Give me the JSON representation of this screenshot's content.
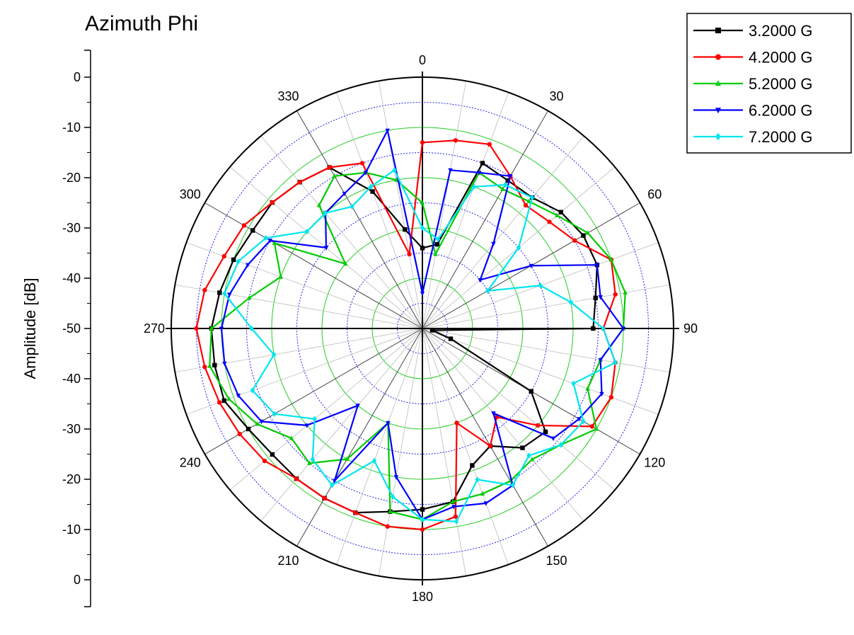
{
  "chart_data": {
    "type": "polar-line",
    "title": "Azimuth Phi",
    "ylabel": "Amplitude [dB]",
    "radial_range_db": [
      -50,
      0
    ],
    "radial_tick_labels": [
      "0",
      "-10",
      "-20",
      "-30",
      "-40",
      "-50",
      "-40",
      "-30",
      "-20",
      "-10",
      "0"
    ],
    "angle_tick_labels": [
      {
        "deg": 0,
        "label": "0"
      },
      {
        "deg": 30,
        "label": "30"
      },
      {
        "deg": 60,
        "label": "60"
      },
      {
        "deg": 90,
        "label": "90"
      },
      {
        "deg": 120,
        "label": "120"
      },
      {
        "deg": 150,
        "label": "150"
      },
      {
        "deg": 180,
        "label": "180"
      },
      {
        "deg": 210,
        "label": "210"
      },
      {
        "deg": 240,
        "label": "240"
      },
      {
        "deg": 270,
        "label": "270"
      },
      {
        "deg": 300,
        "label": "300"
      },
      {
        "deg": 330,
        "label": "330"
      }
    ],
    "legend_position": "top-right",
    "series": [
      {
        "name": "3.2000 G",
        "color": "#000000",
        "marker": "square",
        "angles": [
          0,
          10,
          20,
          30,
          40,
          50,
          60,
          70,
          80,
          90,
          100,
          110,
          120,
          130,
          140,
          150,
          160,
          170,
          180,
          190,
          200,
          210,
          220,
          230,
          240,
          250,
          260,
          270,
          280,
          290,
          300,
          310,
          320,
          330,
          340,
          350
        ],
        "values": [
          -34,
          -33,
          -15,
          -16,
          -16,
          -14,
          -13,
          -13,
          -15,
          -16,
          -48,
          -44,
          -25,
          -18,
          -19,
          -23,
          -21,
          -15,
          -14,
          -13,
          -11,
          -11,
          -11,
          -11,
          -10,
          -8,
          -8,
          -8,
          -9,
          -10,
          -11,
          -11,
          -12,
          -13,
          -21,
          -30
        ]
      },
      {
        "name": "4.2000 G",
        "color": "#ff0000",
        "marker": "circle",
        "angles": [
          0,
          10,
          20,
          30,
          40,
          50,
          60,
          70,
          80,
          90,
          100,
          110,
          120,
          130,
          140,
          150,
          160,
          170,
          180,
          190,
          200,
          210,
          220,
          230,
          240,
          250,
          260,
          270,
          280,
          290,
          300,
          310,
          320,
          330,
          340,
          350
        ],
        "values": [
          -13,
          -12,
          -11,
          -15,
          -18,
          -17,
          -15,
          -10,
          -11,
          -14,
          -11,
          -10,
          -11,
          -20,
          -27,
          -23,
          -30,
          -12,
          -10,
          -10,
          -11,
          -11,
          -11,
          -9,
          -8,
          -7,
          -6,
          -5,
          -6,
          -8,
          -9,
          -11,
          -12,
          -13,
          -15,
          -35
        ]
      },
      {
        "name": "5.2000 G",
        "color": "#00cc00",
        "marker": "triangle-up",
        "angles": [
          0,
          10,
          20,
          30,
          40,
          50,
          60,
          70,
          80,
          90,
          100,
          110,
          120,
          130,
          140,
          150,
          160,
          170,
          180,
          190,
          200,
          210,
          220,
          230,
          240,
          250,
          260,
          270,
          280,
          290,
          300,
          310,
          320,
          330,
          340,
          350
        ],
        "values": [
          -25,
          -35,
          -17,
          -18,
          -17,
          -15,
          -12,
          -10,
          -9,
          -10,
          -14,
          -15,
          -10,
          -14,
          -16,
          -15,
          -15,
          -15,
          -12,
          -13,
          -30,
          -20,
          -15,
          -16,
          -12,
          -9,
          -7,
          -8,
          -15,
          -20,
          -16,
          -30,
          -18,
          -15,
          -17,
          -20
        ]
      },
      {
        "name": "6.2000 G",
        "color": "#0000ff",
        "marker": "triangle-down",
        "angles": [
          0,
          10,
          20,
          30,
          40,
          50,
          60,
          70,
          80,
          90,
          100,
          110,
          120,
          130,
          140,
          150,
          160,
          170,
          180,
          190,
          200,
          210,
          220,
          230,
          240,
          250,
          260,
          270,
          280,
          290,
          300,
          310,
          320,
          330,
          340,
          350
        ],
        "values": [
          -43,
          -18,
          -17,
          -15,
          -28,
          -35,
          -25,
          -13,
          -14,
          -10,
          -14,
          -12,
          -14,
          -16,
          -28,
          -14,
          -13,
          -14,
          -12,
          -20,
          -30,
          -15,
          -30,
          -20,
          -13,
          -11,
          -10,
          -10,
          -11,
          -13,
          -15,
          -25,
          -20,
          -19,
          -17,
          -10
        ]
      },
      {
        "name": "7.2000 G",
        "color": "#00e5ee",
        "marker": "diamond",
        "angles": [
          0,
          10,
          20,
          30,
          40,
          50,
          60,
          70,
          80,
          90,
          100,
          110,
          120,
          130,
          140,
          150,
          160,
          170,
          180,
          190,
          200,
          210,
          220,
          230,
          240,
          250,
          260,
          270,
          280,
          290,
          300,
          310,
          320,
          330,
          340,
          350
        ],
        "values": [
          -30,
          -32,
          -20,
          -17,
          -16,
          -25,
          -35,
          -25,
          -20,
          -14,
          -11,
          -18,
          -13,
          -14,
          -17,
          -14,
          -18,
          -11,
          -12,
          -16,
          -22,
          -14,
          -16,
          -22,
          -16,
          -14,
          -20,
          -16,
          -10,
          -11,
          -14,
          -20,
          -20,
          -22,
          -20,
          -18
        ]
      }
    ]
  }
}
